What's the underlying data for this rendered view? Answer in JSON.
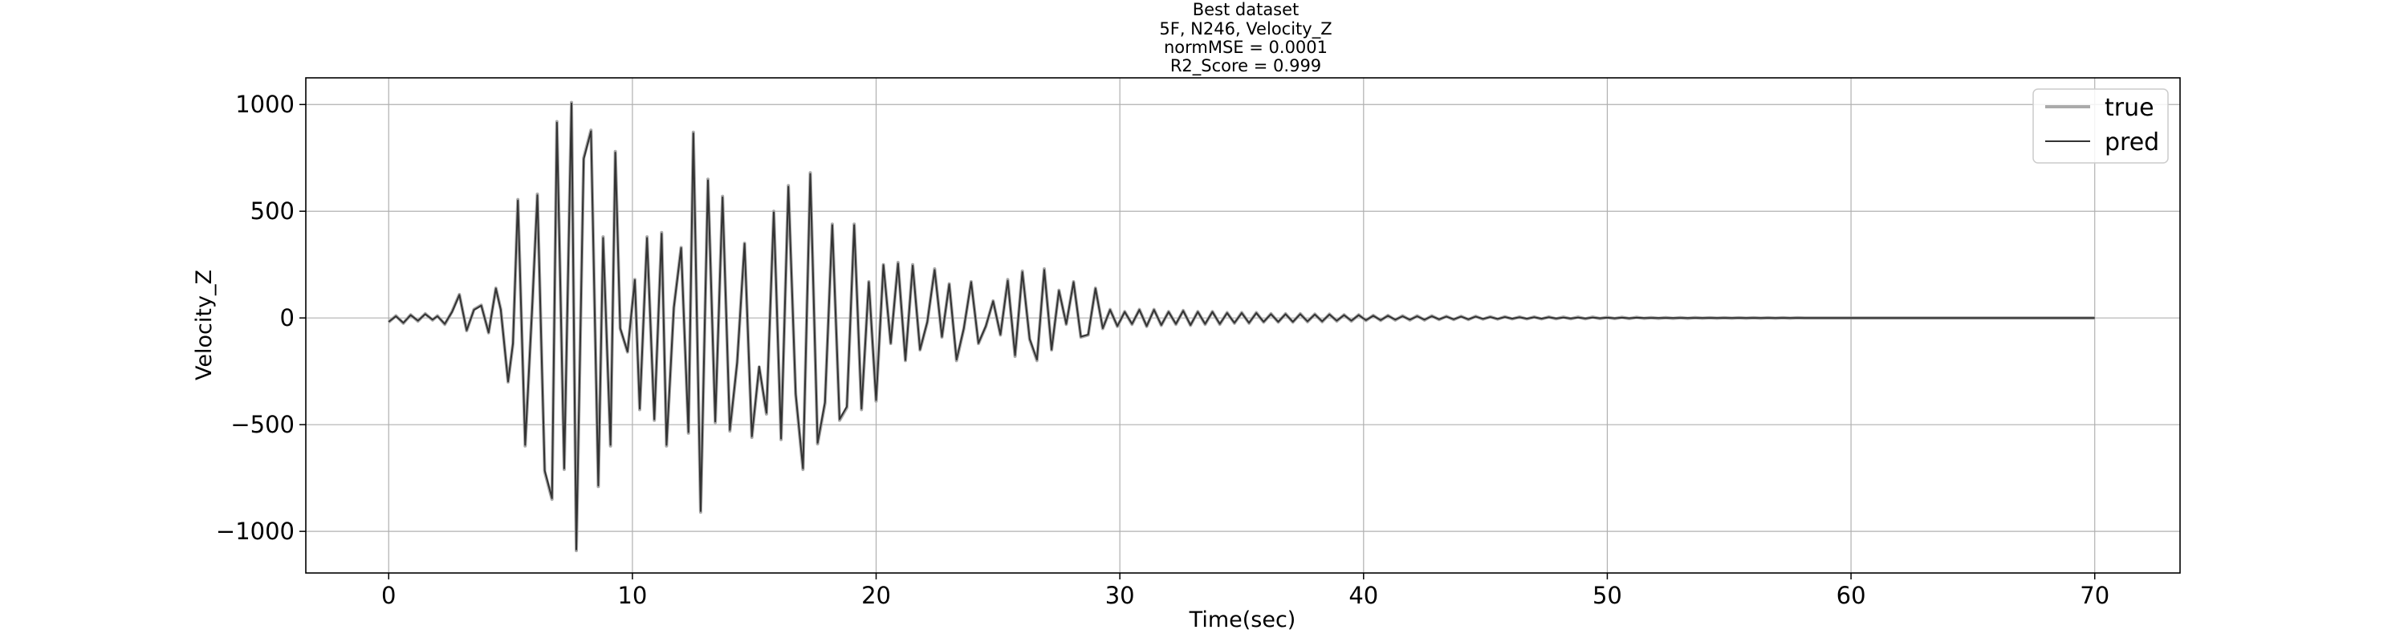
{
  "chart_data": {
    "type": "line",
    "title_lines": [
      "Best dataset",
      "5F, N246, Velocity_Z",
      "normMSE = 0.0001",
      "R2_Score = 0.999"
    ],
    "xlabel": "Time(sec)",
    "ylabel": "Velocity_Z",
    "xlim": [
      -3.4,
      73.5
    ],
    "ylim": [
      -1195,
      1125
    ],
    "xticks": [
      0,
      10,
      20,
      30,
      40,
      50,
      60,
      70
    ],
    "yticks": [
      -1000,
      -500,
      0,
      500,
      1000
    ],
    "ytick_labels": [
      "−1000",
      "−500",
      "0",
      "500",
      "1000"
    ],
    "grid": true,
    "legend": {
      "location": "upper right"
    },
    "series": [
      {
        "name": "true",
        "color": "#aaaaaa",
        "style": "thick light line"
      },
      {
        "name": "pred",
        "color": "#333333",
        "style": "thin dark line"
      }
    ],
    "x": [
      0.0,
      0.3,
      0.6,
      0.9,
      1.2,
      1.5,
      1.8,
      2.0,
      2.3,
      2.6,
      2.9,
      3.2,
      3.5,
      3.8,
      4.1,
      4.4,
      4.6,
      4.9,
      5.1,
      5.3,
      5.6,
      5.9,
      6.1,
      6.4,
      6.7,
      6.9,
      7.2,
      7.5,
      7.7,
      8.0,
      8.3,
      8.6,
      8.8,
      9.1,
      9.3,
      9.5,
      9.8,
      10.1,
      10.3,
      10.6,
      10.9,
      11.2,
      11.4,
      11.7,
      12.0,
      12.3,
      12.5,
      12.8,
      13.1,
      13.4,
      13.7,
      14.0,
      14.3,
      14.6,
      14.9,
      15.2,
      15.5,
      15.8,
      16.1,
      16.4,
      16.7,
      17.0,
      17.3,
      17.6,
      17.9,
      18.2,
      18.5,
      18.8,
      19.1,
      19.4,
      19.7,
      20.0,
      20.3,
      20.6,
      20.9,
      21.2,
      21.5,
      21.8,
      22.1,
      22.4,
      22.7,
      23.0,
      23.3,
      23.6,
      23.9,
      24.2,
      24.5,
      24.8,
      25.1,
      25.4,
      25.7,
      26.0,
      26.3,
      26.6,
      26.9,
      27.2,
      27.5,
      27.8,
      28.1,
      28.4,
      28.7,
      29.0,
      29.3,
      29.6,
      29.9,
      30.2,
      30.5,
      30.8,
      31.1,
      31.4,
      31.7,
      32.0,
      32.3,
      32.6,
      32.9,
      33.2,
      33.5,
      33.8,
      34.1,
      34.4,
      34.7,
      35.0,
      35.3,
      35.6,
      35.9,
      36.2,
      36.5,
      36.8,
      37.1,
      37.4,
      37.7,
      38.0,
      38.3,
      38.6,
      38.9,
      39.2,
      39.5,
      39.8,
      40.1,
      40.4,
      40.7,
      41.0,
      41.3,
      41.6,
      41.9,
      42.2,
      42.5,
      42.8,
      43.1,
      43.4,
      43.7,
      44.0,
      44.3,
      44.6,
      44.9,
      45.2,
      45.5,
      45.8,
      46.1,
      46.4,
      46.7,
      47.0,
      47.3,
      47.6,
      47.9,
      48.2,
      48.5,
      48.8,
      49.1,
      49.4,
      49.7,
      50.0,
      50.3,
      50.6,
      50.9,
      51.2,
      51.5,
      51.8,
      52.1,
      52.4,
      52.7,
      53.0,
      53.3,
      53.6,
      53.9,
      54.2,
      54.5,
      54.8,
      55.1,
      55.4,
      55.7,
      56.0,
      56.3,
      56.6,
      56.9,
      57.2,
      57.5,
      57.8,
      58.1,
      58.4,
      58.7,
      59.0,
      59.3,
      59.6,
      59.9,
      60.2,
      60.5,
      60.8,
      61.1,
      61.4,
      61.7,
      62.0,
      62.3,
      62.6,
      62.9,
      63.2,
      63.5,
      63.8,
      64.1,
      64.4,
      64.7,
      65.0,
      65.3,
      65.6,
      65.9,
      66.2,
      66.5,
      66.8,
      67.1,
      67.4,
      67.7,
      68.0,
      68.3,
      68.6,
      68.9,
      69.2,
      69.5,
      69.8,
      70.0
    ],
    "true_values": [
      -20,
      10,
      -25,
      15,
      -15,
      20,
      -10,
      10,
      -30,
      30,
      110,
      -60,
      40,
      60,
      -70,
      140,
      40,
      -300,
      -120,
      555,
      -600,
      80,
      580,
      -720,
      -850,
      920,
      -710,
      1010,
      -1090,
      750,
      880,
      -790,
      380,
      -600,
      780,
      -50,
      -160,
      180,
      -430,
      380,
      -480,
      400,
      -600,
      50,
      330,
      -540,
      870,
      -910,
      650,
      -490,
      570,
      -530,
      -210,
      350,
      -560,
      -230,
      -450,
      500,
      -570,
      620,
      -360,
      -710,
      680,
      -590,
      -400,
      440,
      -480,
      -420,
      440,
      -430,
      170,
      -390,
      250,
      -120,
      260,
      -200,
      250,
      -150,
      -20,
      230,
      -90,
      160,
      -200,
      -50,
      170,
      -120,
      -40,
      80,
      -80,
      180,
      -180,
      220,
      -100,
      -200,
      230,
      -150,
      130,
      -30,
      170,
      -90,
      -80,
      140,
      -50,
      40,
      -40,
      30,
      -30,
      40,
      -40,
      40,
      -35,
      30,
      -30,
      35,
      -35,
      30,
      -30,
      30,
      -30,
      25,
      -25,
      25,
      -25,
      25,
      -20,
      20,
      -20,
      20,
      -20,
      20,
      -18,
      18,
      -18,
      18,
      -15,
      15,
      -15,
      15,
      -12,
      12,
      -12,
      12,
      -10,
      10,
      -10,
      10,
      -10,
      10,
      -8,
      8,
      -8,
      8,
      -8,
      8,
      -6,
      6,
      -6,
      6,
      -5,
      5,
      -5,
      5,
      -5,
      5,
      -4,
      4,
      -4,
      4,
      -4,
      4,
      -3,
      3,
      -3,
      3,
      -3,
      3,
      -2,
      2,
      -2,
      2,
      -2,
      2,
      -2,
      2,
      -1,
      1,
      -1,
      1,
      -1,
      1,
      -1,
      1,
      -1,
      1,
      -1,
      1,
      -1,
      1,
      0,
      0,
      0,
      0,
      0,
      0,
      0,
      0,
      0,
      0,
      0,
      0,
      0,
      0,
      0,
      0,
      0,
      0,
      0,
      0,
      0,
      0,
      0,
      0,
      0,
      0,
      0,
      0,
      0,
      0,
      0,
      0,
      0,
      0,
      0,
      0,
      0,
      0,
      0,
      0,
      0,
      0,
      0,
      0,
      0,
      0,
      0,
      0,
      0,
      0,
      0,
      0,
      0,
      0
    ],
    "pred_values": [
      -18,
      8,
      -23,
      13,
      -13,
      18,
      -8,
      8,
      -28,
      28,
      108,
      -58,
      38,
      58,
      -68,
      138,
      38,
      -298,
      -118,
      550,
      -595,
      78,
      575,
      -715,
      -845,
      915,
      -705,
      1005,
      -1085,
      745,
      875,
      -785,
      375,
      -595,
      775,
      -48,
      -158,
      178,
      -425,
      375,
      -475,
      395,
      -595,
      48,
      328,
      -535,
      865,
      -905,
      645,
      -485,
      565,
      -525,
      -208,
      348,
      -555,
      -228,
      -445,
      495,
      -565,
      615,
      -355,
      -705,
      675,
      -585,
      -395,
      435,
      -475,
      -415,
      435,
      -425,
      168,
      -385,
      248,
      -118,
      255,
      -198,
      245,
      -148,
      -18,
      225,
      -88,
      158,
      -195,
      -48,
      168,
      -118,
      -38,
      78,
      -78,
      175,
      -175,
      215,
      -98,
      -195,
      225,
      -148,
      128,
      -28,
      168,
      -88,
      -78,
      138,
      -48,
      38,
      -38,
      28,
      -28,
      38,
      -38,
      38,
      -33,
      28,
      -28,
      33,
      -33,
      28,
      -28,
      28,
      -28,
      23,
      -23,
      23,
      -23,
      23,
      -18,
      18,
      -18,
      18,
      -18,
      18,
      -16,
      16,
      -16,
      16,
      -13,
      13,
      -13,
      13,
      -10,
      10,
      -10,
      10,
      -8,
      8,
      -8,
      8,
      -8,
      8,
      -6,
      6,
      -6,
      6,
      -6,
      6,
      -4,
      4,
      -4,
      4,
      -3,
      3,
      -3,
      3,
      -3,
      3,
      -2,
      2,
      -2,
      2,
      -2,
      2,
      -1,
      1,
      -1,
      1,
      -1,
      1,
      0,
      0,
      0,
      0,
      0,
      0,
      0,
      0,
      0,
      0,
      0,
      0,
      0,
      0,
      0,
      0,
      0,
      0,
      0,
      0,
      0,
      0,
      0,
      0,
      0,
      0,
      0,
      0,
      0,
      0,
      0,
      0,
      0,
      0,
      0,
      0,
      0,
      0,
      0,
      0,
      0,
      0,
      0,
      0,
      0,
      0,
      0,
      0,
      0,
      0,
      0,
      0,
      0,
      0,
      0,
      0,
      0,
      0,
      0,
      0,
      0,
      0,
      0,
      0,
      0,
      0,
      0,
      0
    ]
  }
}
